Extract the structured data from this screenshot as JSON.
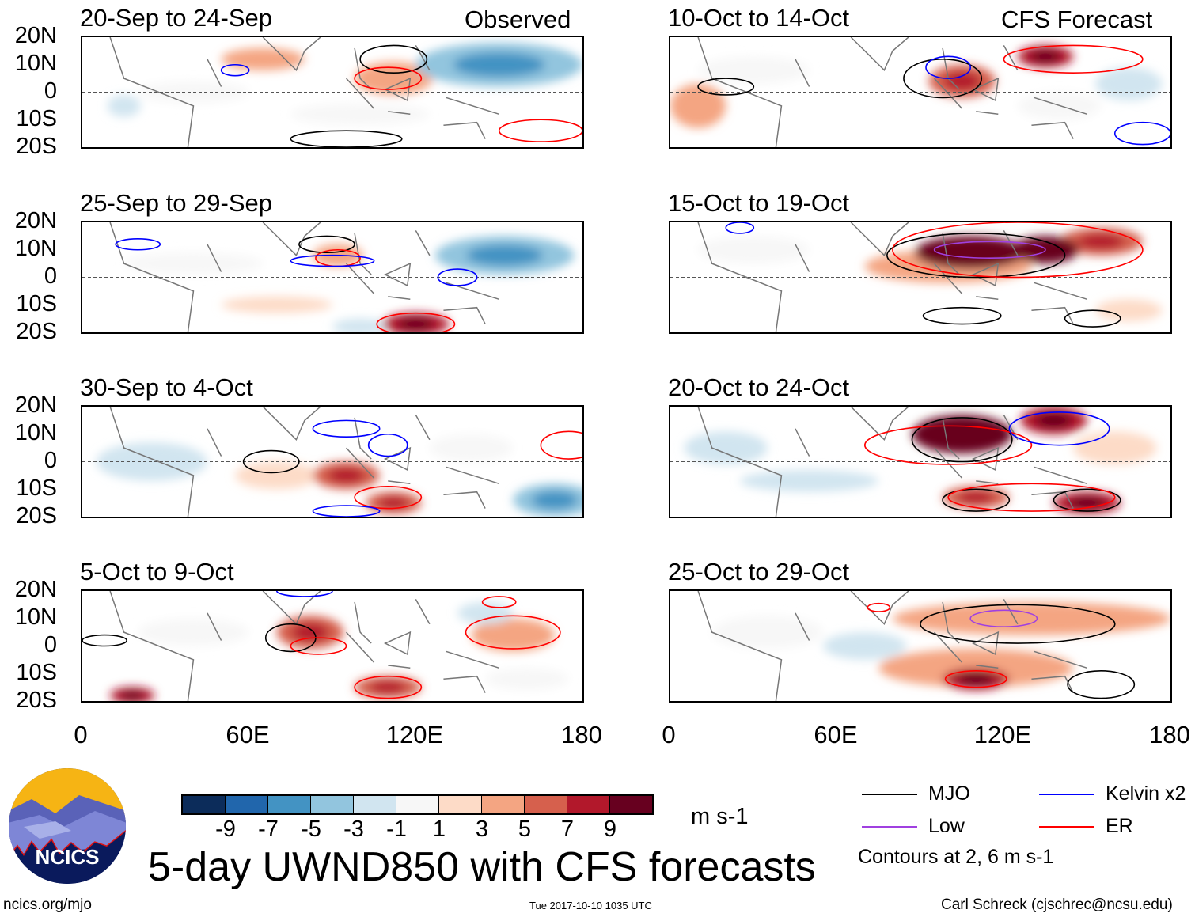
{
  "header": {
    "left_label": "Observed",
    "right_label": "CFS Forecast"
  },
  "lat_ticks": [
    "20N",
    "10N",
    "0",
    "10S",
    "20S"
  ],
  "lon_ticks": [
    "0",
    "60E",
    "120E",
    "180"
  ],
  "panels": [
    {
      "title": "20-Sep to 24-Sep",
      "column": "observed",
      "shading": [
        {
          "lon": 150,
          "lat": 10,
          "rlon": 30,
          "rlat": 8,
          "v": -5
        },
        {
          "lon": 112,
          "lat": 5,
          "rlon": 14,
          "rlat": 6,
          "v": 3
        },
        {
          "lon": 65,
          "lat": 12,
          "rlon": 15,
          "rlat": 4,
          "v": 3
        },
        {
          "lon": 15,
          "lat": -5,
          "rlon": 6,
          "rlat": 4,
          "v": -3
        },
        {
          "lon": 40,
          "lat": 0,
          "rlon": 20,
          "rlat": 4,
          "v": -1
        },
        {
          "lon": 100,
          "lat": -8,
          "rlon": 25,
          "rlat": 4,
          "v": -1
        }
      ],
      "contours": [
        {
          "lon": 112,
          "lat": 12,
          "rlon": 12,
          "rlat": 5,
          "kind": "MJO"
        },
        {
          "lon": 110,
          "lat": 5,
          "rlon": 12,
          "rlat": 4,
          "kind": "ER"
        },
        {
          "lon": 95,
          "lat": -17,
          "rlon": 20,
          "rlat": 3,
          "kind": "MJO"
        },
        {
          "lon": 165,
          "lat": -14,
          "rlon": 15,
          "rlat": 4,
          "kind": "ER"
        },
        {
          "lon": 55,
          "lat": 8,
          "rlon": 5,
          "rlat": 2,
          "kind": "Kelvin"
        }
      ]
    },
    {
      "title": "10-Oct to 14-Oct",
      "column": "forecast",
      "shading": [
        {
          "lon": 105,
          "lat": 4,
          "rlon": 12,
          "rlat": 6,
          "v": 5
        },
        {
          "lon": 135,
          "lat": 13,
          "rlon": 10,
          "rlat": 4,
          "v": 7
        },
        {
          "lon": 165,
          "lat": 3,
          "rlon": 12,
          "rlat": 6,
          "v": -3
        },
        {
          "lon": 30,
          "lat": 8,
          "rlon": 20,
          "rlat": 5,
          "v": -1
        },
        {
          "lon": 10,
          "lat": -5,
          "rlon": 10,
          "rlat": 8,
          "v": 3
        },
        {
          "lon": 140,
          "lat": -5,
          "rlon": 15,
          "rlat": 5,
          "v": -1
        }
      ],
      "contours": [
        {
          "lon": 98,
          "lat": 5,
          "rlon": 14,
          "rlat": 7,
          "kind": "MJO"
        },
        {
          "lon": 145,
          "lat": 12,
          "rlon": 25,
          "rlat": 5,
          "kind": "ER"
        },
        {
          "lon": 100,
          "lat": 9,
          "rlon": 8,
          "rlat": 4,
          "kind": "Kelvin"
        },
        {
          "lon": 20,
          "lat": 2,
          "rlon": 10,
          "rlat": 3,
          "kind": "MJO"
        },
        {
          "lon": 170,
          "lat": -15,
          "rlon": 10,
          "rlat": 4,
          "kind": "Kelvin"
        }
      ]
    },
    {
      "title": "25-Sep to 29-Sep",
      "column": "observed",
      "shading": [
        {
          "lon": 152,
          "lat": 8,
          "rlon": 25,
          "rlat": 7,
          "v": -5
        },
        {
          "lon": 120,
          "lat": -17,
          "rlon": 12,
          "rlat": 4,
          "v": 7
        },
        {
          "lon": 92,
          "lat": 8,
          "rlon": 9,
          "rlat": 4,
          "v": 3
        },
        {
          "lon": 100,
          "lat": -18,
          "rlon": 10,
          "rlat": 3,
          "v": -3
        },
        {
          "lon": 40,
          "lat": 5,
          "rlon": 25,
          "rlat": 4,
          "v": -1
        },
        {
          "lon": 70,
          "lat": -10,
          "rlon": 20,
          "rlat": 3,
          "v": 1
        }
      ],
      "contours": [
        {
          "lon": 88,
          "lat": 12,
          "rlon": 10,
          "rlat": 3,
          "kind": "MJO"
        },
        {
          "lon": 92,
          "lat": 7,
          "rlon": 8,
          "rlat": 3,
          "kind": "ER"
        },
        {
          "lon": 120,
          "lat": -17,
          "rlon": 14,
          "rlat": 4,
          "kind": "ER"
        },
        {
          "lon": 135,
          "lat": 0,
          "rlon": 7,
          "rlat": 3,
          "kind": "Kelvin"
        },
        {
          "lon": 20,
          "lat": 12,
          "rlon": 8,
          "rlat": 2,
          "kind": "Kelvin"
        },
        {
          "lon": 90,
          "lat": 6,
          "rlon": 15,
          "rlat": 2,
          "kind": "Kelvin"
        }
      ]
    },
    {
      "title": "15-Oct to 19-Oct",
      "column": "forecast",
      "shading": [
        {
          "lon": 108,
          "lat": 9,
          "rlon": 20,
          "rlat": 6,
          "v": 9
        },
        {
          "lon": 135,
          "lat": 10,
          "rlon": 12,
          "rlat": 5,
          "v": 9
        },
        {
          "lon": 155,
          "lat": 13,
          "rlon": 15,
          "rlat": 5,
          "v": 5
        },
        {
          "lon": 100,
          "lat": 4,
          "rlon": 30,
          "rlat": 6,
          "v": 3
        },
        {
          "lon": 30,
          "lat": 10,
          "rlon": 20,
          "rlat": 5,
          "v": -1
        },
        {
          "lon": 165,
          "lat": -12,
          "rlon": 12,
          "rlat": 4,
          "v": 1
        }
      ],
      "contours": [
        {
          "lon": 110,
          "lat": 8,
          "rlon": 32,
          "rlat": 8,
          "kind": "MJO"
        },
        {
          "lon": 125,
          "lat": 10,
          "rlon": 45,
          "rlat": 10,
          "kind": "ER"
        },
        {
          "lon": 115,
          "lat": 10,
          "rlon": 20,
          "rlat": 3,
          "kind": "Low"
        },
        {
          "lon": 105,
          "lat": -14,
          "rlon": 14,
          "rlat": 3,
          "kind": "MJO"
        },
        {
          "lon": 152,
          "lat": -15,
          "rlon": 10,
          "rlat": 3,
          "kind": "MJO"
        },
        {
          "lon": 25,
          "lat": 18,
          "rlon": 5,
          "rlat": 2,
          "kind": "Kelvin"
        }
      ]
    },
    {
      "title": "30-Sep to 4-Oct",
      "column": "observed",
      "shading": [
        {
          "lon": 170,
          "lat": -14,
          "rlon": 15,
          "rlat": 6,
          "v": -5
        },
        {
          "lon": 95,
          "lat": -5,
          "rlon": 12,
          "rlat": 5,
          "v": 5
        },
        {
          "lon": 112,
          "lat": -15,
          "rlon": 10,
          "rlat": 4,
          "v": 5
        },
        {
          "lon": 25,
          "lat": 0,
          "rlon": 20,
          "rlat": 7,
          "v": -3
        },
        {
          "lon": 140,
          "lat": 5,
          "rlon": 15,
          "rlat": 5,
          "v": -1
        },
        {
          "lon": 70,
          "lat": -5,
          "rlon": 15,
          "rlat": 5,
          "v": 1
        }
      ],
      "contours": [
        {
          "lon": 68,
          "lat": 0,
          "rlon": 10,
          "rlat": 4,
          "kind": "MJO"
        },
        {
          "lon": 110,
          "lat": -13,
          "rlon": 12,
          "rlat": 4,
          "kind": "ER"
        },
        {
          "lon": 95,
          "lat": 12,
          "rlon": 12,
          "rlat": 3,
          "kind": "Kelvin"
        },
        {
          "lon": 110,
          "lat": 6,
          "rlon": 7,
          "rlat": 4,
          "kind": "Kelvin"
        },
        {
          "lon": 175,
          "lat": 6,
          "rlon": 10,
          "rlat": 5,
          "kind": "ER"
        },
        {
          "lon": 95,
          "lat": -18,
          "rlon": 12,
          "rlat": 2,
          "kind": "Kelvin"
        }
      ]
    },
    {
      "title": "20-Oct to 24-Oct",
      "column": "forecast",
      "shading": [
        {
          "lon": 105,
          "lat": 10,
          "rlon": 18,
          "rlat": 7,
          "v": 9
        },
        {
          "lon": 138,
          "lat": 15,
          "rlon": 12,
          "rlat": 5,
          "v": 7
        },
        {
          "lon": 110,
          "lat": -13,
          "rlon": 12,
          "rlat": 4,
          "v": 5
        },
        {
          "lon": 150,
          "lat": -15,
          "rlon": 12,
          "rlat": 4,
          "v": 7
        },
        {
          "lon": 50,
          "lat": -7,
          "rlon": 25,
          "rlat": 4,
          "v": -3
        },
        {
          "lon": 20,
          "lat": 5,
          "rlon": 15,
          "rlat": 6,
          "v": -3
        },
        {
          "lon": 160,
          "lat": 5,
          "rlon": 15,
          "rlat": 6,
          "v": 1
        }
      ],
      "contours": [
        {
          "lon": 105,
          "lat": 8,
          "rlon": 18,
          "rlat": 8,
          "kind": "MJO"
        },
        {
          "lon": 100,
          "lat": 6,
          "rlon": 30,
          "rlat": 7,
          "kind": "ER"
        },
        {
          "lon": 140,
          "lat": 12,
          "rlon": 18,
          "rlat": 6,
          "kind": "Kelvin"
        },
        {
          "lon": 110,
          "lat": -14,
          "rlon": 12,
          "rlat": 4,
          "kind": "MJO"
        },
        {
          "lon": 150,
          "lat": -14,
          "rlon": 12,
          "rlat": 4,
          "kind": "MJO"
        },
        {
          "lon": 130,
          "lat": -13,
          "rlon": 30,
          "rlat": 5,
          "kind": "ER"
        }
      ]
    },
    {
      "title": "5-Oct to 9-Oct",
      "column": "observed",
      "shading": [
        {
          "lon": 82,
          "lat": 5,
          "rlon": 12,
          "rlat": 6,
          "v": 5
        },
        {
          "lon": 110,
          "lat": -15,
          "rlon": 12,
          "rlat": 4,
          "v": 5
        },
        {
          "lon": 155,
          "lat": 4,
          "rlon": 15,
          "rlat": 6,
          "v": 3
        },
        {
          "lon": 145,
          "lat": 12,
          "rlon": 10,
          "rlat": 4,
          "v": -3
        },
        {
          "lon": 18,
          "lat": -18,
          "rlon": 8,
          "rlat": 3,
          "v": 7
        },
        {
          "lon": 40,
          "lat": 5,
          "rlon": 20,
          "rlat": 5,
          "v": -1
        },
        {
          "lon": 160,
          "lat": -12,
          "rlon": 15,
          "rlat": 4,
          "v": -1
        }
      ],
      "contours": [
        {
          "lon": 75,
          "lat": 3,
          "rlon": 9,
          "rlat": 5,
          "kind": "MJO"
        },
        {
          "lon": 85,
          "lat": 0,
          "rlon": 10,
          "rlat": 3,
          "kind": "ER"
        },
        {
          "lon": 155,
          "lat": 5,
          "rlon": 17,
          "rlat": 6,
          "kind": "ER"
        },
        {
          "lon": 110,
          "lat": -15,
          "rlon": 12,
          "rlat": 4,
          "kind": "ER"
        },
        {
          "lon": 8,
          "lat": 2,
          "rlon": 8,
          "rlat": 2,
          "kind": "MJO"
        },
        {
          "lon": 150,
          "lat": 16,
          "rlon": 6,
          "rlat": 2,
          "kind": "ER"
        },
        {
          "lon": 80,
          "lat": 20,
          "rlon": 10,
          "rlat": 2,
          "kind": "Kelvin"
        }
      ]
    },
    {
      "title": "25-Oct to 29-Oct",
      "column": "forecast",
      "shading": [
        {
          "lon": 130,
          "lat": 10,
          "rlon": 50,
          "rlat": 6,
          "v": 3
        },
        {
          "lon": 70,
          "lat": 0,
          "rlon": 15,
          "rlat": 5,
          "v": -3
        },
        {
          "lon": 110,
          "lat": -12,
          "rlon": 12,
          "rlat": 4,
          "v": 7
        },
        {
          "lon": 110,
          "lat": -8,
          "rlon": 35,
          "rlat": 7,
          "v": 3
        },
        {
          "lon": 35,
          "lat": 5,
          "rlon": 20,
          "rlat": 6,
          "v": -1
        }
      ],
      "contours": [
        {
          "lon": 125,
          "lat": 8,
          "rlon": 35,
          "rlat": 7,
          "kind": "MJO"
        },
        {
          "lon": 120,
          "lat": 10,
          "rlon": 12,
          "rlat": 3,
          "kind": "Low"
        },
        {
          "lon": 110,
          "lat": -12,
          "rlon": 11,
          "rlat": 3,
          "kind": "ER"
        },
        {
          "lon": 155,
          "lat": -14,
          "rlon": 12,
          "rlat": 5,
          "kind": "MJO"
        },
        {
          "lon": 75,
          "lat": 14,
          "rlon": 4,
          "rlat": 1.5,
          "kind": "ER"
        }
      ]
    }
  ],
  "colorbar": {
    "colors": [
      "#0c2c5a",
      "#2166ac",
      "#4393c3",
      "#92c5de",
      "#d1e5f0",
      "#f7f7f7",
      "#fddbc7",
      "#f4a582",
      "#d6604d",
      "#b2182b",
      "#67001f"
    ],
    "ticks": [
      "-9",
      "-7",
      "-5",
      "-3",
      "-1",
      "1",
      "3",
      "5",
      "7",
      "9"
    ],
    "units": "m s-1"
  },
  "legend": {
    "items": [
      {
        "label": "MJO",
        "color": "#000000"
      },
      {
        "label": "Kelvin x2",
        "color": "#0000ff"
      },
      {
        "label": "Low",
        "color": "#a040e0"
      },
      {
        "label": "ER",
        "color": "#ff0000"
      }
    ],
    "note": "Contours at 2, 6 m s-1"
  },
  "logo": {
    "text": "NCICS"
  },
  "main_title": "5-day UWND850 with CFS forecasts",
  "footer": {
    "url": "ncics.org/mjo",
    "timestamp": "Tue 2017-10-10 1035 UTC",
    "credit": "Carl Schreck (cjschrec@ncsu.edu)"
  }
}
